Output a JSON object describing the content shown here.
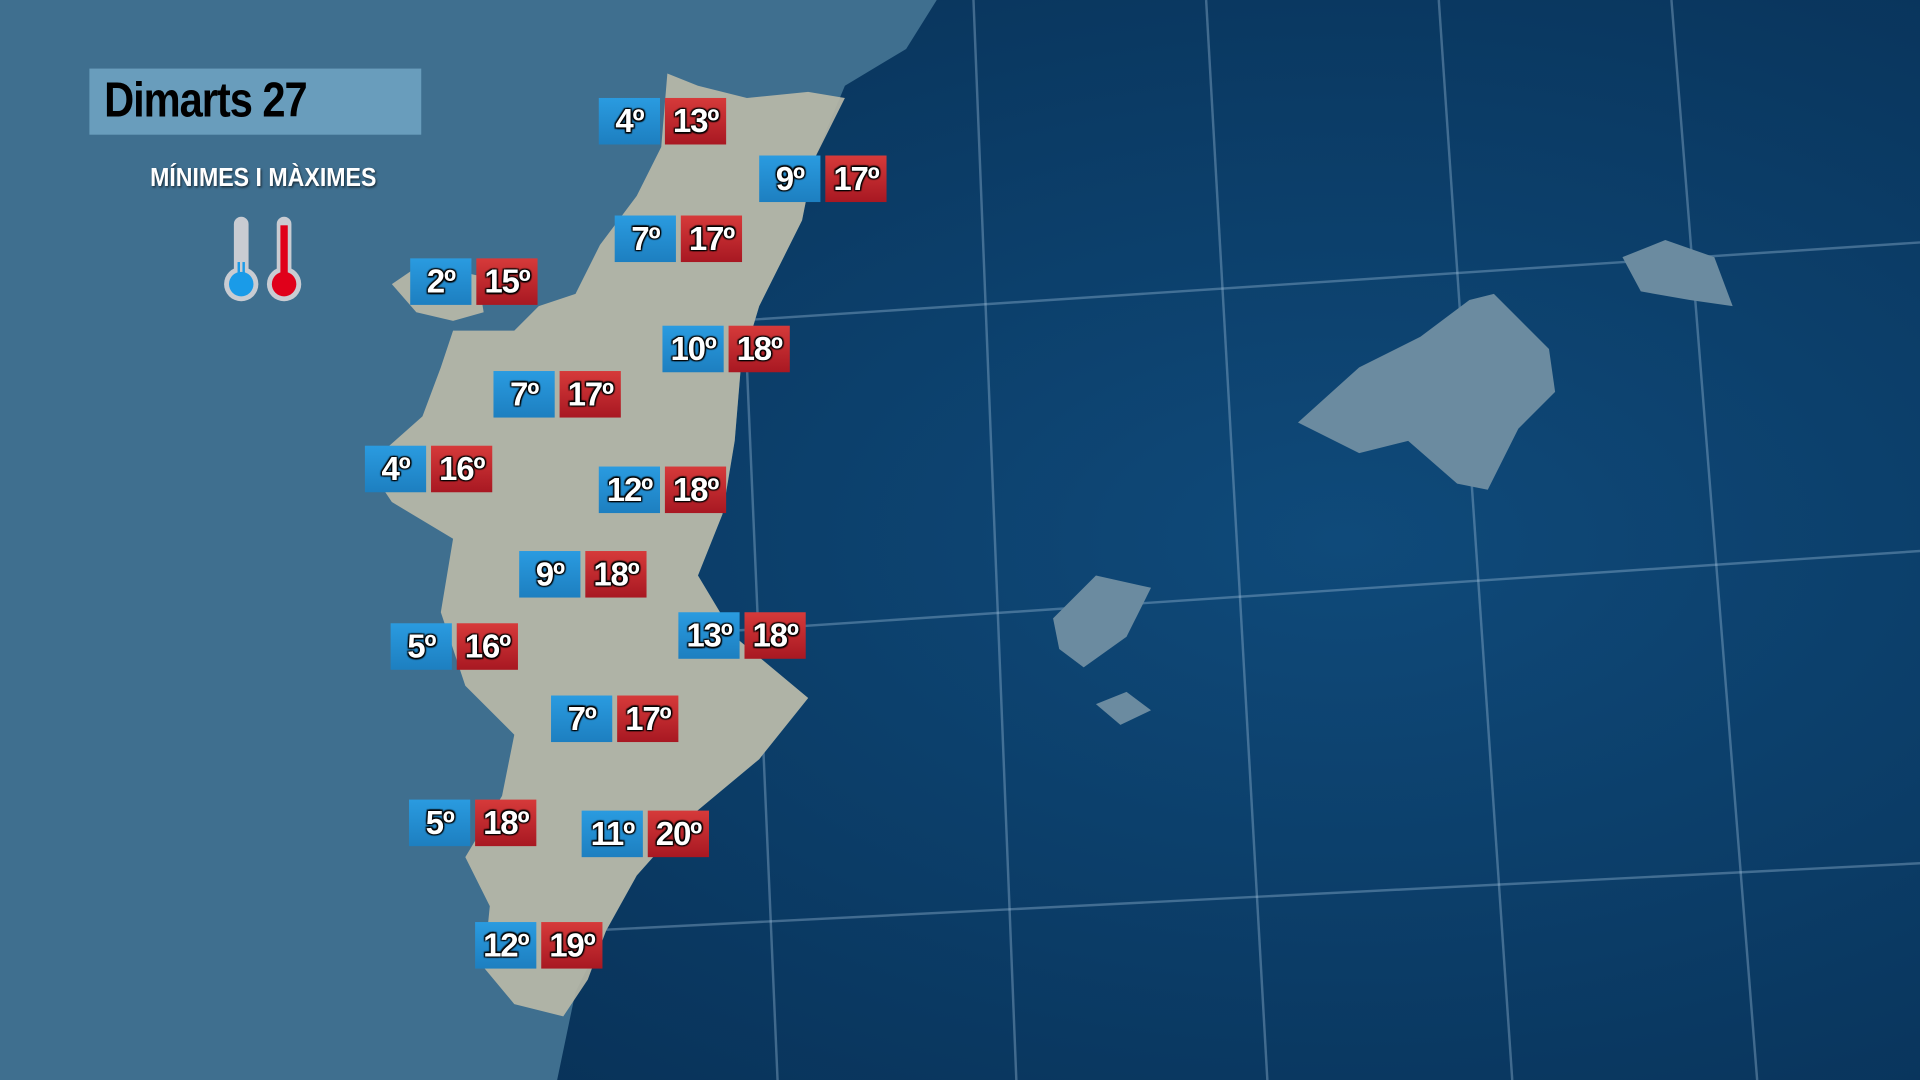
{
  "header": {
    "title": "Dimarts 27",
    "subtitle": "MÍNIMES I MÀXIMES"
  },
  "legend": {
    "min_icon": "thermometer-cold-icon",
    "max_icon": "thermometer-hot-icon"
  },
  "colors": {
    "min": "#1d8ad0",
    "max": "#c0242c",
    "sea": "#0b3a63",
    "land": "#3d6e8e"
  },
  "locations": [
    {
      "min": "4º",
      "max": "13º"
    },
    {
      "min": "9º",
      "max": "17º"
    },
    {
      "min": "7º",
      "max": "17º"
    },
    {
      "min": "2º",
      "max": "15º"
    },
    {
      "min": "10º",
      "max": "18º"
    },
    {
      "min": "7º",
      "max": "17º"
    },
    {
      "min": "4º",
      "max": "16º"
    },
    {
      "min": "12º",
      "max": "18º"
    },
    {
      "min": "9º",
      "max": "18º"
    },
    {
      "min": "5º",
      "max": "16º"
    },
    {
      "min": "13º",
      "max": "18º"
    },
    {
      "min": "7º",
      "max": "17º"
    },
    {
      "min": "5º",
      "max": "18º"
    },
    {
      "min": "11º",
      "max": "20º"
    },
    {
      "min": "12º",
      "max": "19º"
    }
  ]
}
